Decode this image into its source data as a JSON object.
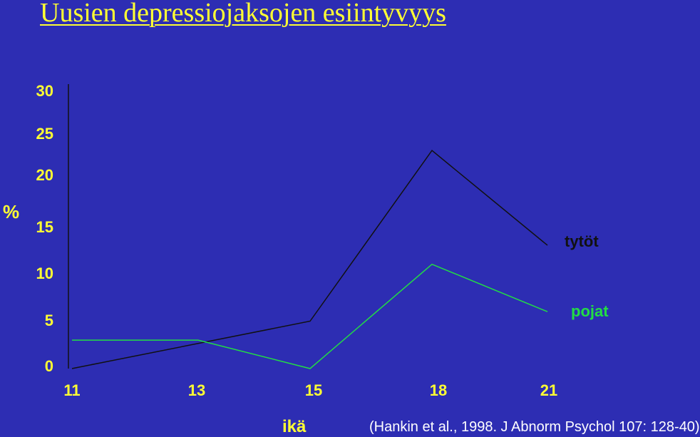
{
  "chart_data": {
    "type": "line",
    "title": "Uusien depressiojaksojen esiintyvyys",
    "ylabel": "%",
    "xlabel": "ikä",
    "source": "(Hankin et al., 1998. J Abnorm Psychol 107: 128-40)",
    "x_ticks": [
      "11",
      "13",
      "15",
      "18",
      "21"
    ],
    "y_ticks": [
      "0",
      "5",
      "10",
      "15",
      "20",
      "25",
      "30"
    ],
    "ylim": [
      0,
      30
    ],
    "grid": false,
    "series": [
      {
        "name": "tytöt",
        "color": "#111111",
        "x": [
          11,
          15,
          18,
          21
        ],
        "y": [
          0,
          5,
          23,
          13
        ]
      },
      {
        "name": "pojat",
        "color": "#22dd44",
        "x": [
          11,
          13,
          15,
          18,
          21
        ],
        "y": [
          3,
          3,
          0,
          11,
          6
        ]
      }
    ]
  }
}
